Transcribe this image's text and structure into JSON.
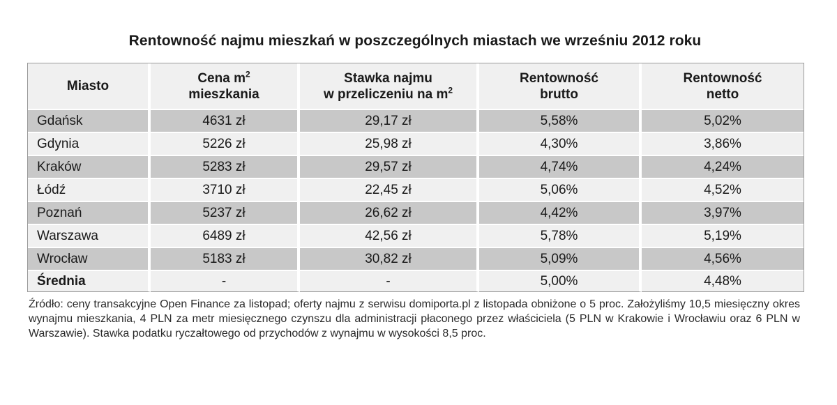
{
  "title": "Rentowność najmu mieszkań w poszczególnych miastach we wrześniu 2012 roku",
  "header": {
    "col0": "Miasto",
    "col1_line1": "Cena m",
    "col1_sup": "2",
    "col1_line2": "mieszkania",
    "col2_line1": "Stawka najmu",
    "col2_line2": "w przeliczeniu na m",
    "col2_sup": "2",
    "col3_line1": "Rentowność",
    "col3_line2": "brutto",
    "col4_line1": "Rentowność",
    "col4_line2": "netto"
  },
  "rows": [
    {
      "city": "Gdańsk",
      "price": "4631 zł",
      "rent": "29,17 zł",
      "gross": "5,58%",
      "net": "5,02%"
    },
    {
      "city": "Gdynia",
      "price": "5226 zł",
      "rent": "25,98 zł",
      "gross": "4,30%",
      "net": "3,86%"
    },
    {
      "city": "Kraków",
      "price": "5283 zł",
      "rent": "29,57 zł",
      "gross": "4,74%",
      "net": "4,24%"
    },
    {
      "city": "Łódź",
      "price": "3710 zł",
      "rent": "22,45 zł",
      "gross": "5,06%",
      "net": "4,52%"
    },
    {
      "city": "Poznań",
      "price": "5237 zł",
      "rent": "26,62 zł",
      "gross": "4,42%",
      "net": "3,97%"
    },
    {
      "city": "Warszawa",
      "price": "6489 zł",
      "rent": "42,56 zł",
      "gross": "5,78%",
      "net": "5,19%"
    },
    {
      "city": "Wrocław",
      "price": "5183 zł",
      "rent": "30,82 zł",
      "gross": "5,09%",
      "net": "4,56%"
    }
  ],
  "average": {
    "city": "Średnia",
    "price": "-",
    "rent": "-",
    "gross": "5,00%",
    "net": "4,48%"
  },
  "footnote": "Źródło: ceny transakcyjne Open Finance za listopad; oferty najmu z serwisu domiporta.pl z listopada obniżone o 5 proc. Założyliśmy 10,5 miesięczny okres wynajmu mieszkania, 4 PLN za metr miesięcznego czynszu dla administracji płaconego przez właściciela (5 PLN w Krakowie i Wrocławiu oraz 6 PLN w Warszawie). Stawka podatku ryczałtowego od przychodów z wynajmu w wysokości 8,5 proc.",
  "colors": {
    "shade": "#c8c8c8",
    "light": "#f0f0f0"
  }
}
